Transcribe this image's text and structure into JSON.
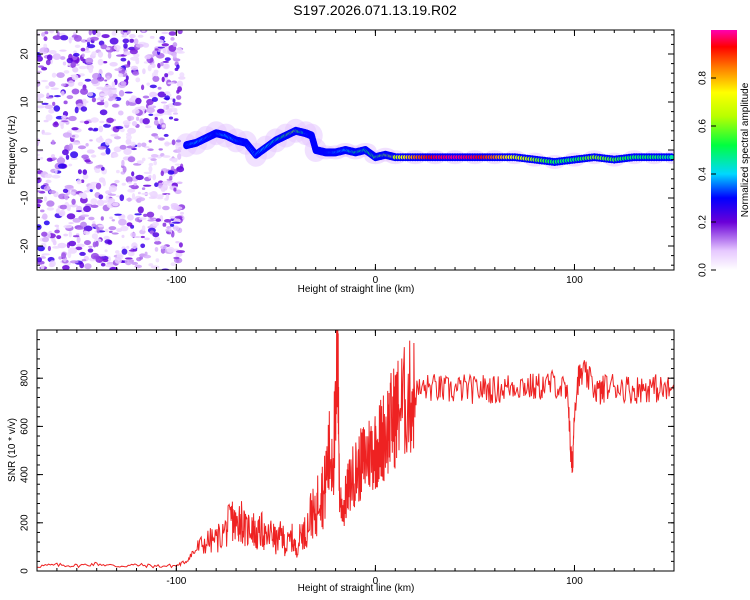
{
  "title": "S197.2026.071.13.19.R02",
  "colorbar": {
    "label": "Normalized spectral amplitude",
    "ticks": [
      0.0,
      0.2,
      0.4,
      0.6,
      0.8
    ],
    "tick_labels": [
      "0.0",
      "0.2",
      "0.4",
      "0.6",
      "0.8"
    ],
    "range": [
      0,
      1
    ]
  },
  "chart_data": [
    {
      "type": "heatmap",
      "title": "",
      "xlabel": "Height of straight line (km)",
      "ylabel": "Frequency (Hz)",
      "xlim": [
        -170,
        150
      ],
      "ylim": [
        -25,
        25
      ],
      "xticks": [
        -100,
        0,
        100
      ],
      "xtick_labels": [
        "-100",
        "0",
        "100"
      ],
      "yticks": [
        -20,
        -10,
        0,
        10,
        20
      ],
      "ytick_labels": [
        "-20",
        "-10",
        "0",
        "10",
        "20"
      ],
      "noise_region_x": [
        -170,
        -97
      ],
      "signal_ridge": {
        "x": [
          -95,
          -90,
          -85,
          -80,
          -75,
          -70,
          -65,
          -60,
          -55,
          -50,
          -45,
          -40,
          -35,
          -32,
          -30,
          -25,
          -20,
          -15,
          -10,
          -5,
          0,
          5,
          10,
          20,
          30,
          40,
          50,
          60,
          70,
          80,
          90,
          100,
          110,
          120,
          130,
          140,
          150
        ],
        "freq_hz": [
          1.0,
          1.5,
          2.5,
          3.5,
          3.0,
          2.0,
          1.5,
          -1.0,
          0.5,
          2.0,
          3.0,
          4.0,
          3.5,
          3.0,
          0.0,
          -0.5,
          -0.5,
          0.0,
          -0.5,
          0.0,
          -1.5,
          -1.0,
          -1.5,
          -1.5,
          -1.5,
          -1.5,
          -1.5,
          -1.5,
          -1.5,
          -2.0,
          -2.5,
          -2.0,
          -1.5,
          -2.0,
          -1.5,
          -1.5,
          -1.5
        ],
        "amplitude": [
          0.3,
          0.4,
          0.35,
          0.3,
          0.4,
          0.35,
          0.3,
          0.35,
          0.4,
          0.45,
          0.55,
          0.6,
          0.45,
          0.3,
          0.3,
          0.3,
          0.35,
          0.4,
          0.5,
          0.5,
          0.55,
          0.6,
          0.65,
          0.85,
          0.95,
          0.98,
          0.95,
          0.85,
          0.7,
          0.6,
          0.5,
          0.5,
          0.6,
          0.55,
          0.5,
          0.5,
          0.45
        ]
      }
    },
    {
      "type": "line",
      "title": "",
      "xlabel": "Height of straight line (km)",
      "ylabel": "SNR (10 * v/v)",
      "xlim": [
        -170,
        150
      ],
      "ylim": [
        0,
        1000
      ],
      "xticks": [
        -100,
        0,
        100
      ],
      "xtick_labels": [
        "-100",
        "0",
        "100"
      ],
      "yticks": [
        0,
        200,
        400,
        600,
        800
      ],
      "ytick_labels": [
        "0",
        "200",
        "400",
        "600",
        "800"
      ],
      "color": "#ee2222",
      "series": [
        {
          "name": "SNR",
          "x": [
            -170,
            -160,
            -150,
            -140,
            -130,
            -120,
            -110,
            -100,
            -95,
            -90,
            -85,
            -80,
            -75,
            -72,
            -70,
            -68,
            -65,
            -62,
            -60,
            -57,
            -55,
            -52,
            -50,
            -47,
            -45,
            -42,
            -40,
            -37,
            -35,
            -32,
            -30,
            -28,
            -26,
            -24,
            -22,
            -20,
            -19,
            -18,
            -16,
            -14,
            -12,
            -10,
            -8,
            -6,
            -4,
            -2,
            0,
            2,
            4,
            6,
            8,
            10,
            12,
            15,
            18,
            20,
            25,
            30,
            35,
            40,
            45,
            50,
            55,
            60,
            65,
            70,
            75,
            80,
            85,
            90,
            95,
            97,
            98,
            99,
            100,
            102,
            105,
            110,
            113,
            115,
            120,
            125,
            130,
            135,
            140,
            145,
            150
          ],
          "y": [
            20,
            25,
            22,
            30,
            20,
            25,
            20,
            22,
            40,
            90,
            120,
            130,
            170,
            220,
            180,
            230,
            160,
            200,
            140,
            170,
            130,
            160,
            120,
            150,
            100,
            140,
            90,
            160,
            160,
            250,
            210,
            370,
            300,
            450,
            500,
            560,
            980,
            300,
            260,
            330,
            380,
            410,
            430,
            460,
            480,
            500,
            510,
            530,
            560,
            590,
            620,
            650,
            680,
            700,
            720,
            740,
            760,
            760,
            750,
            750,
            760,
            750,
            760,
            750,
            760,
            770,
            770,
            760,
            770,
            780,
            750,
            700,
            500,
            420,
            680,
            800,
            820,
            760,
            740,
            760,
            770,
            760,
            750,
            760,
            760,
            750,
            750
          ]
        }
      ]
    }
  ]
}
